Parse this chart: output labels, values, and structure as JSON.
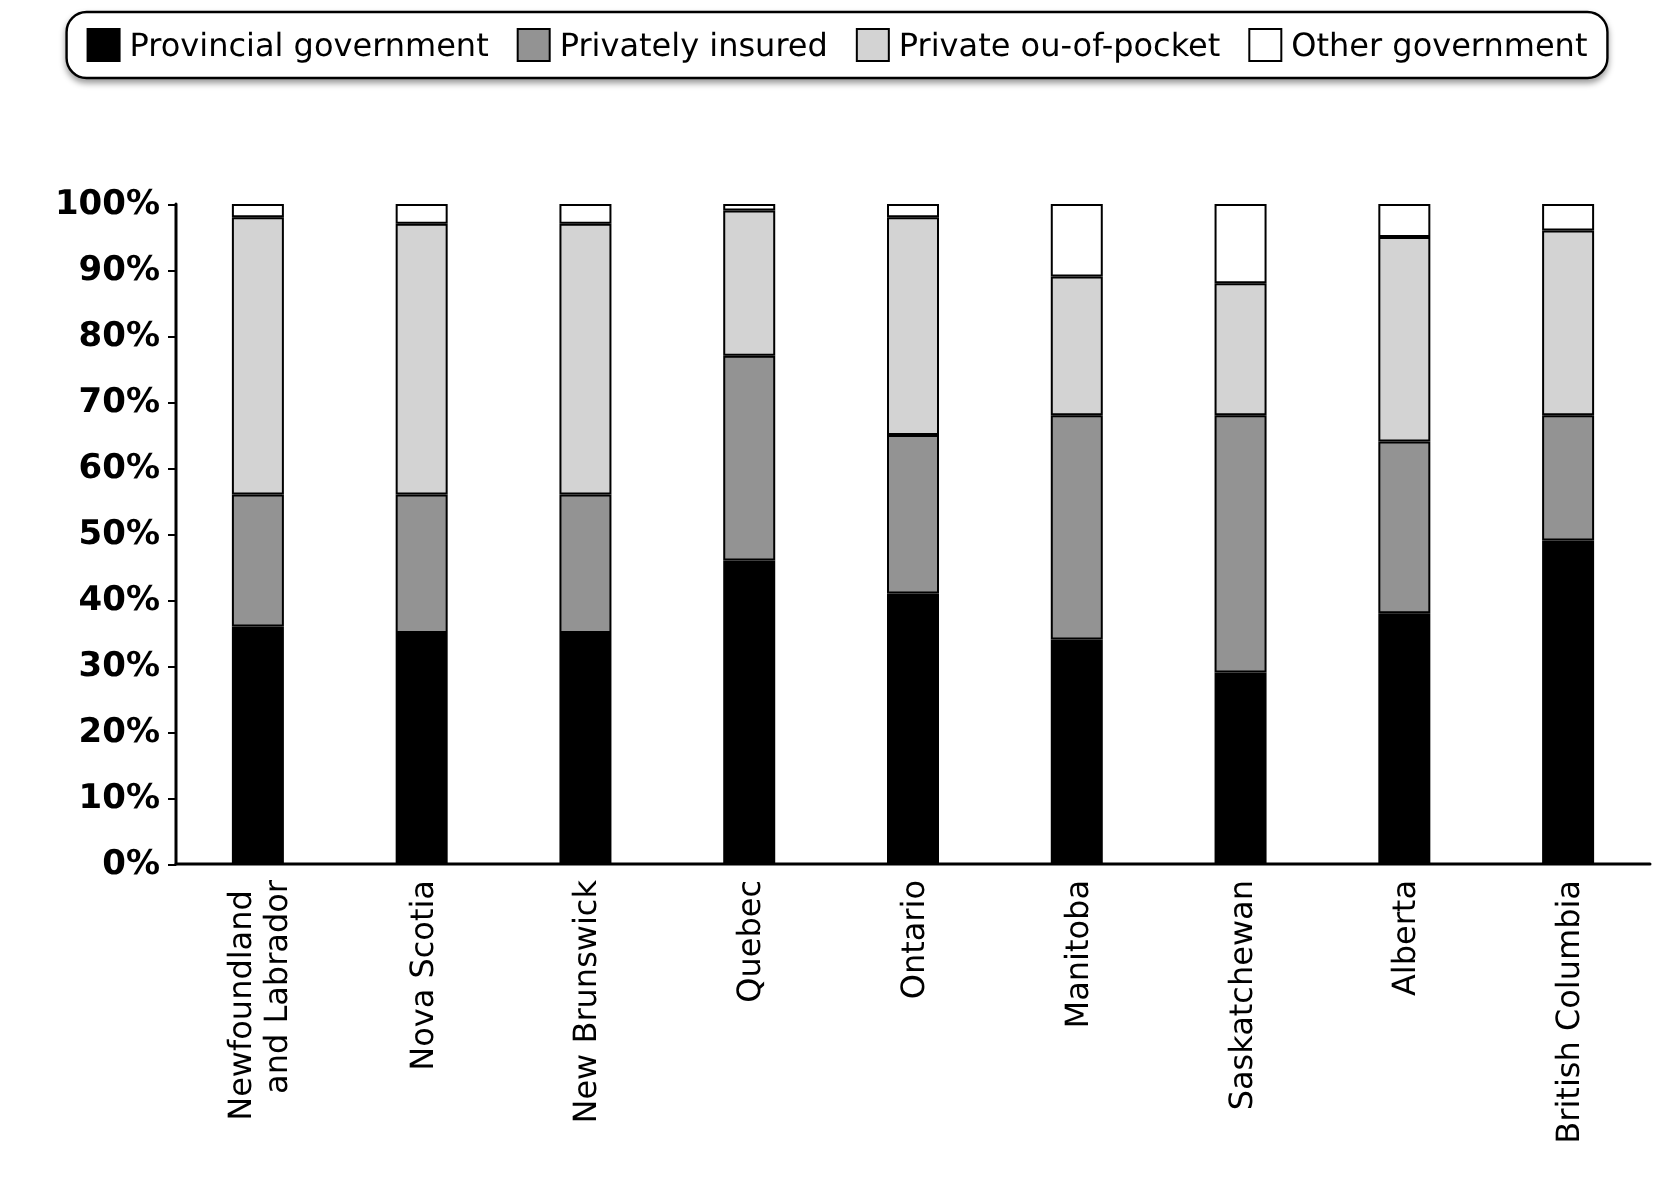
{
  "chart_data": {
    "type": "bar",
    "stacked": true,
    "legend": "top",
    "grid": false,
    "categories": [
      "Newfoundland and Labrador",
      "Nova Scotia",
      "New Brunswick",
      "Quebec",
      "Ontario",
      "Manitoba",
      "Saskatchewan",
      "Alberta",
      "British Columbia"
    ],
    "series": [
      {
        "name": "Provincial government",
        "color": "#000000",
        "values": [
          36,
          35,
          35,
          46,
          41,
          34,
          29,
          38,
          49
        ]
      },
      {
        "name": "Privately insured",
        "color": "#939393",
        "values": [
          20,
          21,
          21,
          31,
          24,
          34,
          39,
          26,
          19
        ]
      },
      {
        "name": "Private ou-of-pocket",
        "color": "#d3d3d3",
        "values": [
          42,
          41,
          41,
          22,
          33,
          21,
          20,
          31,
          28
        ]
      },
      {
        "name": "Other government",
        "color": "#ffffff",
        "values": [
          2,
          3,
          3,
          1,
          2,
          11,
          12,
          5,
          4
        ]
      }
    ],
    "ylim": [
      0,
      100
    ],
    "yticks": [
      {
        "value": 0,
        "label": "0%"
      },
      {
        "value": 10,
        "label": "10%"
      },
      {
        "value": 20,
        "label": "20%"
      },
      {
        "value": 30,
        "label": "30%"
      },
      {
        "value": 40,
        "label": "40%"
      },
      {
        "value": 50,
        "label": "50%"
      },
      {
        "value": 60,
        "label": "60%"
      },
      {
        "value": 70,
        "label": "70%"
      },
      {
        "value": 80,
        "label": "80%"
      },
      {
        "value": 90,
        "label": "90%"
      },
      {
        "value": 100,
        "label": "100%"
      }
    ]
  }
}
